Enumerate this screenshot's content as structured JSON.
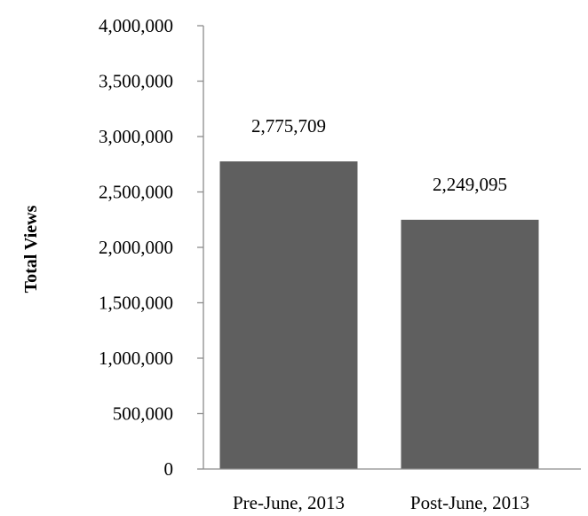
{
  "chart_data": {
    "type": "bar",
    "title": "",
    "xlabel": "",
    "ylabel": "Total Views",
    "categories": [
      "Pre-June, 2013",
      "Post-June, 2013"
    ],
    "values": [
      2775709,
      2249095
    ],
    "data_labels": [
      "2,775,709",
      "2,249,095"
    ],
    "ylim": [
      0,
      4000000
    ],
    "yticks": [
      0,
      500000,
      1000000,
      1500000,
      2000000,
      2500000,
      3000000,
      3500000,
      4000000
    ],
    "ytick_labels": [
      "0",
      "500,000",
      "1,000,000",
      "1,500,000",
      "2,000,000",
      "2,500,000",
      "3,000,000",
      "3,500,000",
      "4,000,000"
    ],
    "grid": false,
    "legend": "none",
    "bar_color": "#5f5f5f",
    "axis_color": "#8c8c8c"
  }
}
